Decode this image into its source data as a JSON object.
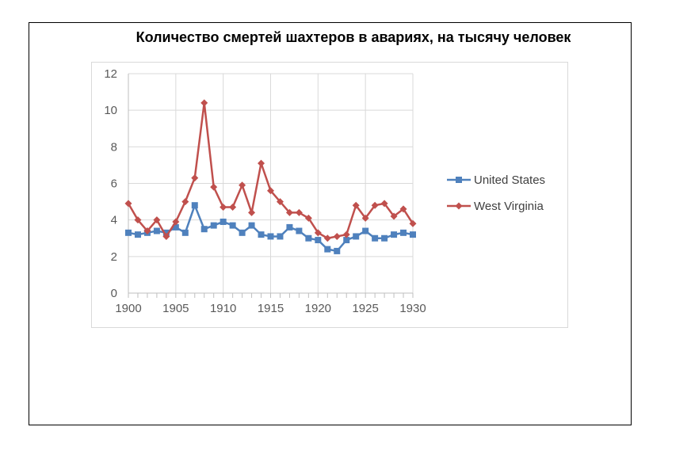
{
  "chart_data": {
    "type": "line",
    "title": "Количество смертей шахтеров в авариях, на тысячу человек",
    "xlabel": "",
    "ylabel": "",
    "xlim": [
      1900,
      1930
    ],
    "ylim": [
      0,
      12
    ],
    "x_ticks": [
      "1900",
      "1905",
      "1910",
      "1915",
      "1920",
      "1925",
      "1930"
    ],
    "y_ticks": [
      "0",
      "2",
      "4",
      "6",
      "8",
      "10",
      "12"
    ],
    "grid": true,
    "legend_position": "right",
    "x": [
      1900,
      1901,
      1902,
      1903,
      1904,
      1905,
      1906,
      1907,
      1908,
      1909,
      1910,
      1911,
      1912,
      1913,
      1914,
      1915,
      1916,
      1917,
      1918,
      1919,
      1920,
      1921,
      1922,
      1923,
      1924,
      1925,
      1926,
      1927,
      1928,
      1929,
      1930
    ],
    "series": [
      {
        "name": "United States",
        "color": "#4f81bd",
        "marker": "square",
        "values": [
          3.3,
          3.2,
          3.3,
          3.4,
          3.3,
          3.6,
          3.3,
          4.8,
          3.5,
          3.7,
          3.9,
          3.7,
          3.3,
          3.7,
          3.2,
          3.1,
          3.1,
          3.6,
          3.4,
          3.0,
          2.9,
          2.4,
          2.3,
          2.9,
          3.1,
          3.4,
          3.0,
          3.0,
          3.2,
          3.3,
          3.2
        ]
      },
      {
        "name": "West Virginia",
        "color": "#c0504d",
        "marker": "diamond",
        "values": [
          4.9,
          4.0,
          3.4,
          4.0,
          3.1,
          3.9,
          5.0,
          6.3,
          10.4,
          5.8,
          4.7,
          4.7,
          5.9,
          4.4,
          7.1,
          5.6,
          5.0,
          4.4,
          4.4,
          4.1,
          3.3,
          3.0,
          3.1,
          3.2,
          4.8,
          4.1,
          4.8,
          4.9,
          4.2,
          4.6,
          3.8
        ]
      }
    ]
  }
}
